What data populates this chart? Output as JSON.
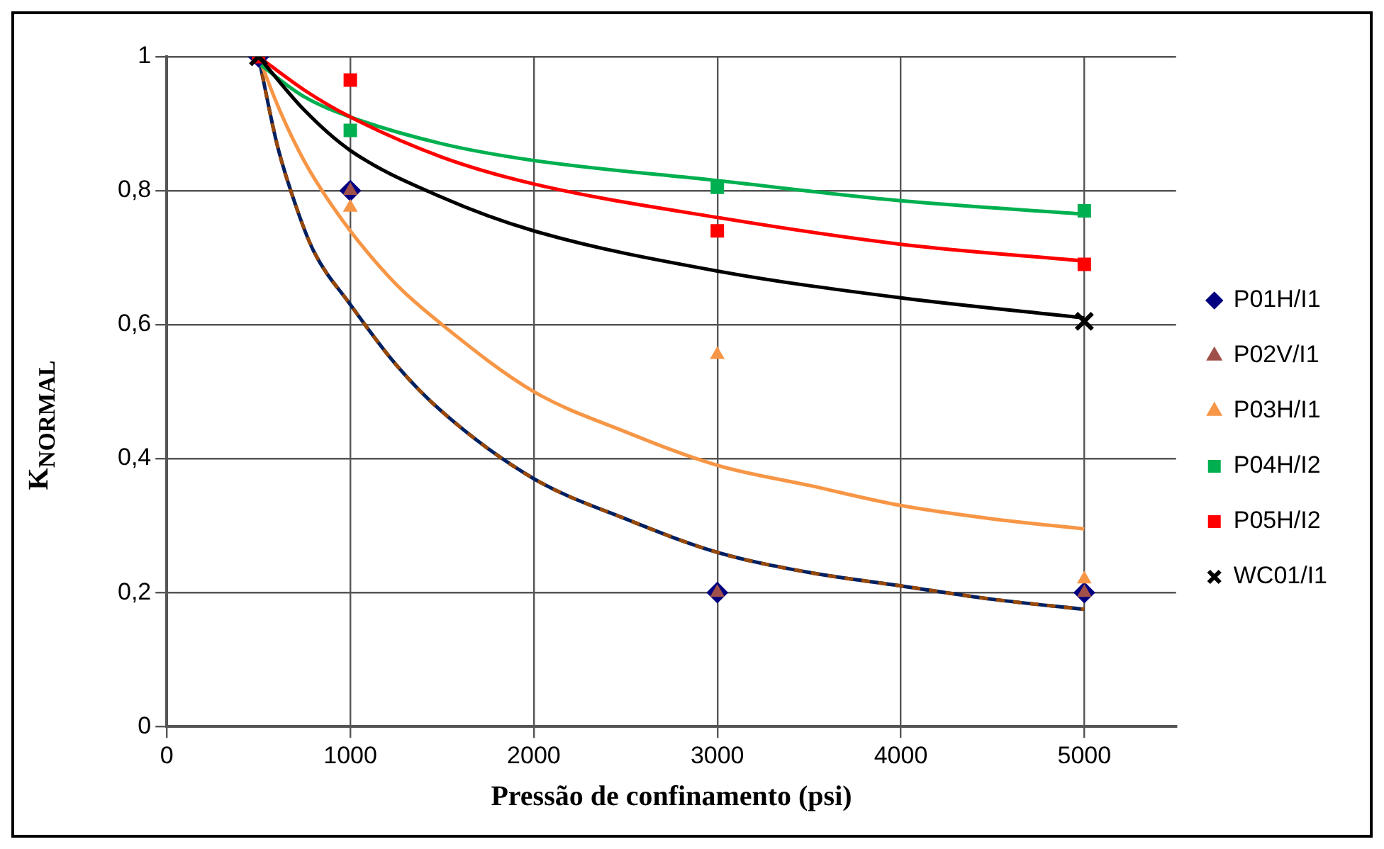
{
  "chart_data": {
    "type": "scatter",
    "xlabel": "Pressão de confinamento (psi)",
    "ylabel": "K$_{NORMAL}$",
    "xlim": [
      0,
      5500
    ],
    "xticks": [
      0,
      1000,
      2000,
      3000,
      4000,
      5000
    ],
    "ylim": [
      0,
      1
    ],
    "yticks": [
      0,
      {
        "value": 0.2,
        "label": "0,2"
      },
      {
        "value": 0.4,
        "label": "0,4"
      },
      {
        "value": 0.6,
        "label": "0,6"
      },
      {
        "value": 0.8,
        "label": "0,8"
      },
      1
    ],
    "grid": true,
    "legend": "right",
    "series": [
      {
        "name": "P01H/I1",
        "color": "#000080",
        "marker": "diamond",
        "x": [
          500,
          1000,
          3000,
          5000
        ],
        "values": [
          1,
          0.8,
          0.2,
          0.2
        ]
      },
      {
        "name": "P02V/I1",
        "color": "#a0504a",
        "marker": "triangle",
        "x": [
          1000,
          3000,
          5000
        ],
        "values": [
          0.8,
          0.2,
          0.2
        ]
      },
      {
        "name": "P03H/I1",
        "color": "#f79646",
        "marker": "triangle",
        "x": [
          1000,
          3000,
          5000
        ],
        "values": [
          0.775,
          0.555,
          0.22
        ]
      },
      {
        "name": "P04H/I2",
        "color": "#00b050",
        "marker": "square",
        "x": [
          1000,
          3000,
          5000
        ],
        "values": [
          0.89,
          0.805,
          0.77
        ]
      },
      {
        "name": "P05H/I2",
        "color": "#ff0000",
        "marker": "square",
        "x": [
          500,
          1000,
          3000,
          5000
        ],
        "values": [
          1,
          0.965,
          0.74,
          0.69
        ]
      },
      {
        "name": "WC01/I1",
        "color": "#000000",
        "marker": "cross",
        "x": [
          500,
          5000
        ],
        "values": [
          1,
          0.605
        ]
      },
      {
        "type": "line",
        "color": "#002060",
        "marker": "none",
        "line_style": "solid",
        "x": [
          500,
          600,
          700,
          800,
          1000,
          1250,
          1500,
          2000,
          2500,
          3000,
          3500,
          4000,
          4500,
          5000
        ],
        "values": [
          1,
          0.87,
          0.78,
          0.71,
          0.63,
          0.54,
          0.47,
          0.37,
          0.31,
          0.26,
          0.23,
          0.21,
          0.19,
          0.175
        ]
      },
      {
        "type": "line",
        "color": "#984807",
        "marker": "none",
        "line_style": "dashed",
        "x": [
          500,
          600,
          700,
          800,
          1000,
          1250,
          1500,
          2000,
          2500,
          3000,
          3500,
          4000,
          4500,
          5000
        ],
        "values": [
          1,
          0.87,
          0.78,
          0.71,
          0.63,
          0.54,
          0.47,
          0.37,
          0.31,
          0.26,
          0.23,
          0.21,
          0.19,
          0.175
        ]
      },
      {
        "type": "line",
        "color": "#f79646",
        "marker": "none",
        "line_style": "solid",
        "x": [
          500,
          600,
          700,
          800,
          1000,
          1250,
          1500,
          2000,
          2500,
          3000,
          3500,
          4000,
          4500,
          5000
        ],
        "values": [
          1,
          0.93,
          0.87,
          0.82,
          0.74,
          0.66,
          0.6,
          0.5,
          0.44,
          0.39,
          0.36,
          0.33,
          0.31,
          0.295
        ]
      },
      {
        "type": "line",
        "color": "#00b050",
        "marker": "none",
        "line_style": "solid",
        "x": [
          500,
          750,
          1000,
          1500,
          2000,
          3000,
          4000,
          5000
        ],
        "values": [
          0.99,
          0.94,
          0.91,
          0.87,
          0.845,
          0.815,
          0.785,
          0.765
        ]
      },
      {
        "type": "line",
        "color": "#ff0000",
        "marker": "none",
        "line_style": "solid",
        "x": [
          500,
          750,
          1000,
          1500,
          2000,
          3000,
          4000,
          5000
        ],
        "values": [
          1,
          0.95,
          0.91,
          0.85,
          0.81,
          0.76,
          0.72,
          0.695
        ]
      },
      {
        "type": "line",
        "color": "#000000",
        "marker": "none",
        "line_style": "solid",
        "x": [
          500,
          750,
          1000,
          1500,
          2000,
          3000,
          4000,
          5000
        ],
        "values": [
          1,
          0.92,
          0.86,
          0.79,
          0.74,
          0.68,
          0.64,
          0.61
        ]
      }
    ]
  }
}
